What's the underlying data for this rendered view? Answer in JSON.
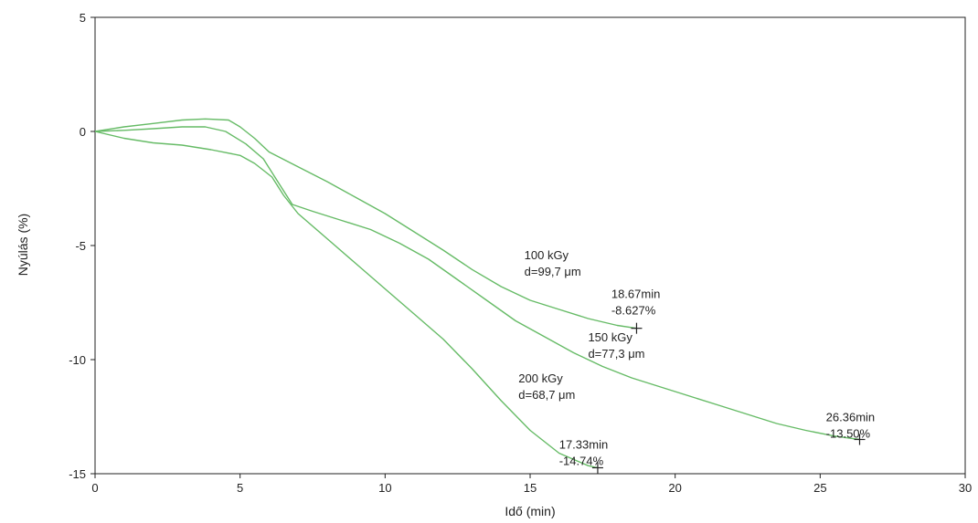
{
  "chart_data": {
    "type": "line",
    "title": "",
    "xlabel": "Idő (min)",
    "ylabel": "Nyúlás (%)",
    "xlim": [
      0,
      30
    ],
    "ylim": [
      -15,
      5
    ],
    "xticks": [
      "0",
      "5",
      "10",
      "15",
      "20",
      "25",
      "30"
    ],
    "yticks": [
      "5",
      "0",
      "-5",
      "-10",
      "-15"
    ],
    "grid": false,
    "line_color": "#66bb66",
    "series": [
      {
        "x": [
          0,
          1,
          2,
          3,
          3.8,
          4.6,
          5.0,
          5.5,
          6,
          7,
          8,
          9,
          10,
          11,
          12,
          13,
          14,
          15,
          16,
          17,
          18,
          18.67
        ],
        "y": [
          0,
          0.2,
          0.35,
          0.5,
          0.55,
          0.5,
          0.2,
          -0.3,
          -0.9,
          -1.55,
          -2.2,
          -2.9,
          -3.6,
          -4.4,
          -5.2,
          -6.05,
          -6.8,
          -7.4,
          -7.8,
          -8.2,
          -8.5,
          -8.627
        ]
      },
      {
        "x": [
          0,
          1,
          2,
          3,
          3.8,
          4.5,
          5.2,
          5.8,
          6.3,
          6.8,
          7.5,
          8.5,
          9.5,
          10.5,
          11.5,
          12.5,
          13.5,
          14.5,
          15.5,
          16.5,
          17.5,
          18.5,
          19.5,
          20.5,
          21.5,
          22.5,
          23.5,
          24.5,
          25.5,
          26.36
        ],
        "y": [
          0,
          0.05,
          0.12,
          0.2,
          0.2,
          0.0,
          -0.55,
          -1.2,
          -2.2,
          -3.2,
          -3.5,
          -3.9,
          -4.3,
          -4.9,
          -5.6,
          -6.5,
          -7.4,
          -8.3,
          -9.0,
          -9.7,
          -10.3,
          -10.8,
          -11.2,
          -11.6,
          -12.0,
          -12.4,
          -12.8,
          -13.1,
          -13.35,
          -13.5
        ]
      },
      {
        "x": [
          0,
          1,
          2,
          3,
          4,
          5,
          5.5,
          5.8,
          6.1,
          6.5,
          7,
          8,
          9,
          10,
          11,
          12,
          13,
          14,
          15,
          16,
          17,
          17.33
        ],
        "y": [
          0,
          -0.3,
          -0.5,
          -0.6,
          -0.8,
          -1.05,
          -1.4,
          -1.7,
          -2.0,
          -2.8,
          -3.6,
          -4.7,
          -5.8,
          -6.9,
          -8.0,
          -9.1,
          -10.4,
          -11.8,
          -13.1,
          -14.1,
          -14.65,
          -14.74
        ]
      }
    ],
    "annotations": [
      {
        "lines": [
          "100 kGy",
          "d=99,7 μm"
        ],
        "x": 14.8,
        "y": -5.6
      },
      {
        "lines": [
          "18.67min",
          "-8.627%"
        ],
        "x": 17.8,
        "y": -7.3
      },
      {
        "lines": [
          "150 kGy",
          "d=77,3 μm"
        ],
        "x": 17.0,
        "y": -9.2
      },
      {
        "lines": [
          "200 kGy",
          "d=68,7 μm"
        ],
        "x": 14.6,
        "y": -11.0
      },
      {
        "lines": [
          "26.36min",
          "-13.50%"
        ],
        "x": 25.2,
        "y": -12.7
      },
      {
        "lines": [
          "17.33min",
          "-14.74%"
        ],
        "x": 16.0,
        "y": -13.9
      }
    ],
    "markers": [
      {
        "x": 18.67,
        "y": -8.627
      },
      {
        "x": 26.36,
        "y": -13.5
      },
      {
        "x": 17.33,
        "y": -14.74
      }
    ]
  }
}
